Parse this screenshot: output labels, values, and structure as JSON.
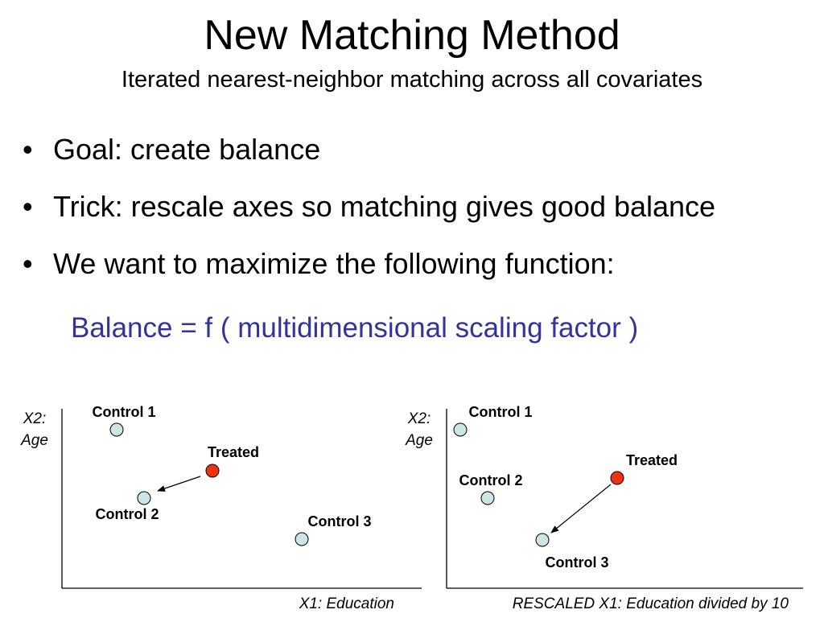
{
  "slide": {
    "title": "New Matching Method",
    "subtitle": "Iterated nearest-neighbor matching across all covariates",
    "bullets": [
      "Goal: create balance",
      "Trick: rescale axes so matching gives good balance",
      "We want to maximize the following function:"
    ],
    "equation": "Balance = f ( multidimensional scaling factor )"
  },
  "colors": {
    "control_fill": "#cce6e6",
    "treated_fill": "#ee3311",
    "equation_text": "#333399"
  },
  "diagrams": [
    {
      "y_axis_label_line1": "X2:",
      "y_axis_label_line2": "Age",
      "x_axis_label": "X1: Education",
      "points": [
        "Control 1",
        "Treated",
        "Control 2",
        "Control 3"
      ],
      "match": "Treated → Control 2"
    },
    {
      "y_axis_label_line1": "X2:",
      "y_axis_label_line2": "Age",
      "x_axis_label": "RESCALED X1: Education divided by 10",
      "points": [
        "Control 1",
        "Control 2",
        "Treated",
        "Control 3"
      ],
      "match": "Treated → Control 3"
    }
  ]
}
